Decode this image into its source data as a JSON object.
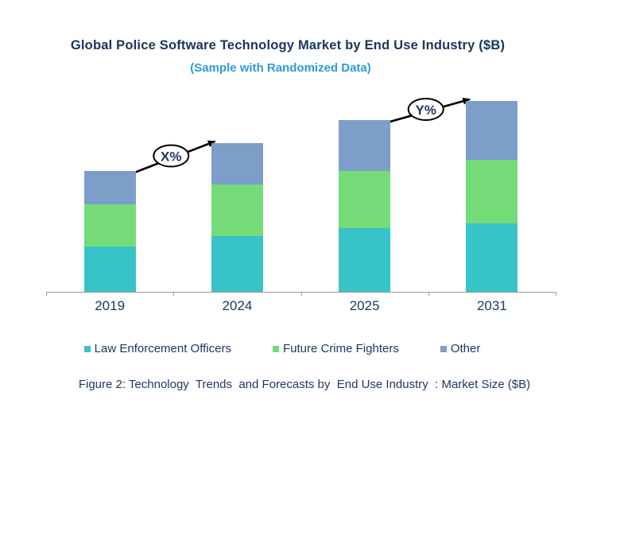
{
  "figure": {
    "title": "Global Police Software Technology Market by End Use Industry ($B)",
    "subtitle": "(Sample with Randomized Data)",
    "caption": "Figure 2: Technology  Trends  and Forecasts by  End Use Industry  : Market Size ($B)"
  },
  "colors": {
    "title_text": "#17365D",
    "subtitle_text": "#2E9AD8",
    "body_text": "#1F3864",
    "axis": "#9C9C9C",
    "annotation_outline": "#000000",
    "annotation_fill": "#FFFFFF"
  },
  "chart_data": {
    "type": "bar",
    "stacked": true,
    "title": "Global Police Software Technology Market by End Use Industry ($B)",
    "subtitle": "(Sample with Randomized Data)",
    "categories": [
      "2019",
      "2024",
      "2025",
      "2031"
    ],
    "series": [
      {
        "name": "Law Enforcement Officers",
        "color": "#38C3C8",
        "values": [
          57,
          70,
          80,
          86
        ]
      },
      {
        "name": "Future Crime Fighters",
        "color": "#74DB78",
        "values": [
          53,
          65,
          72,
          80
        ]
      },
      {
        "name": "Other",
        "color": "#7C9EC9",
        "values": [
          42,
          52,
          64,
          74
        ]
      }
    ],
    "xlabel": "",
    "ylabel": "",
    "ylim": [
      0,
      252
    ],
    "y_axis_visible": false,
    "grid": false,
    "legend_position": "bottom",
    "annotations": [
      {
        "label": "X%",
        "from_category": "2019",
        "to_category": "2024"
      },
      {
        "label": "Y%",
        "from_category": "2025",
        "to_category": "2031"
      }
    ]
  }
}
